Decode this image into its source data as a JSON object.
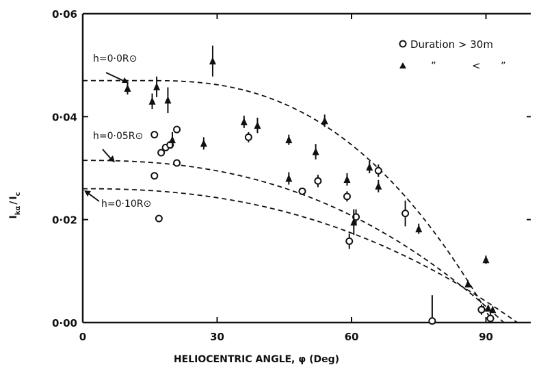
{
  "chart_data": {
    "type": "scatter",
    "title": "",
    "xlabel": "HELIOCENTRIC ANGLE, φ (Deg)",
    "ylabel": "Iₖₐ / Iₐ",
    "ylabel_parts": {
      "main1": "I",
      "sub1": "kα",
      "slash": "/",
      "main2": "I",
      "sub2": "c"
    },
    "xlim": [
      0,
      100
    ],
    "ylim": [
      0,
      0.06
    ],
    "x_ticks": [
      0,
      30,
      60,
      90
    ],
    "x_tick_labels": [
      "0",
      "30",
      "60",
      "90"
    ],
    "y_ticks": [
      0,
      0.02,
      0.04,
      0.06
    ],
    "y_tick_labels": [
      "0·00",
      "0·02",
      "0·04",
      "0·06"
    ],
    "grid": false,
    "legend": {
      "placement": "top-right",
      "entries": [
        {
          "marker": "open-circle",
          "text": "Duration > 30m"
        },
        {
          "marker": "filled-triangle",
          "text": "”",
          "text2": "<",
          "text3": "”"
        }
      ]
    },
    "curves": [
      {
        "label": "h=0·0R⊙",
        "style": "dashed",
        "y_at_0": 0.047,
        "x_zero": 91.5,
        "flat_to": 15,
        "exp": 2.5
      },
      {
        "label": "h=0·05R⊙",
        "style": "dashed",
        "y_at_0": 0.0315,
        "x_zero": 94,
        "flat_to": 0,
        "exp": 2.4
      },
      {
        "label": "h=0·10R⊙",
        "style": "dashed",
        "y_at_0": 0.026,
        "x_zero": 97,
        "flat_to": 0,
        "exp": 2.3
      }
    ],
    "series": [
      {
        "name": "Duration > 30m",
        "marker": "open-circle",
        "points": [
          {
            "x": 16,
            "y": 0.0285,
            "err": 0
          },
          {
            "x": 16,
            "y": 0.0365,
            "err": 0
          },
          {
            "x": 17,
            "y": 0.0202,
            "err": 0
          },
          {
            "x": 17.5,
            "y": 0.033,
            "err": 0
          },
          {
            "x": 18.5,
            "y": 0.034,
            "err": 0
          },
          {
            "x": 19.5,
            "y": 0.0345,
            "err": 0
          },
          {
            "x": 21,
            "y": 0.0375,
            "err": 0
          },
          {
            "x": 21,
            "y": 0.031,
            "err": 0
          },
          {
            "x": 37,
            "y": 0.036,
            "err": 0.001
          },
          {
            "x": 49,
            "y": 0.0255,
            "err": 0
          },
          {
            "x": 52.5,
            "y": 0.0275,
            "err": 0.0012
          },
          {
            "x": 59,
            "y": 0.0245,
            "err": 0.001
          },
          {
            "x": 59.5,
            "y": 0.0158,
            "err": 0.0015
          },
          {
            "x": 61,
            "y": 0.0205,
            "err": 0.0015
          },
          {
            "x": 66,
            "y": 0.0295,
            "err": 0.0012
          },
          {
            "x": 72,
            "y": 0.0212,
            "err": 0.0025
          },
          {
            "x": 78,
            "y": 0.0003,
            "err": 0.005
          },
          {
            "x": 89,
            "y": 0.0025,
            "err": 0.001
          },
          {
            "x": 91,
            "y": 0.0008,
            "err": 0.001
          }
        ]
      },
      {
        "name": "",
        "marker": "filled-triangle",
        "points": [
          {
            "x": 10,
            "y": 0.0455,
            "err": 0.0012
          },
          {
            "x": 15.5,
            "y": 0.043,
            "err": 0.0015
          },
          {
            "x": 16.5,
            "y": 0.0458,
            "err": 0.002
          },
          {
            "x": 19,
            "y": 0.0432,
            "err": 0.0025
          },
          {
            "x": 20,
            "y": 0.0355,
            "err": 0.0015
          },
          {
            "x": 27,
            "y": 0.0348,
            "err": 0.0012
          },
          {
            "x": 29,
            "y": 0.0508,
            "err": 0.003
          },
          {
            "x": 36,
            "y": 0.039,
            "err": 0.0012
          },
          {
            "x": 39,
            "y": 0.0383,
            "err": 0.0015
          },
          {
            "x": 46,
            "y": 0.0355,
            "err": 0.001
          },
          {
            "x": 46,
            "y": 0.028,
            "err": 0.0012
          },
          {
            "x": 52,
            "y": 0.0332,
            "err": 0.0015
          },
          {
            "x": 54,
            "y": 0.0392,
            "err": 0.0012
          },
          {
            "x": 59,
            "y": 0.0278,
            "err": 0.0012
          },
          {
            "x": 60.5,
            "y": 0.0195,
            "err": 0.0025
          },
          {
            "x": 64,
            "y": 0.0302,
            "err": 0.0012
          },
          {
            "x": 66,
            "y": 0.0265,
            "err": 0.0012
          },
          {
            "x": 75,
            "y": 0.0182,
            "err": 0.001
          },
          {
            "x": 86,
            "y": 0.0075,
            "err": 0.0005
          },
          {
            "x": 90,
            "y": 0.0122,
            "err": 0.0008
          },
          {
            "x": 90.5,
            "y": 0.0028,
            "err": 0.0005
          },
          {
            "x": 91.5,
            "y": 0.0025,
            "err": 0.0005
          }
        ]
      }
    ]
  }
}
